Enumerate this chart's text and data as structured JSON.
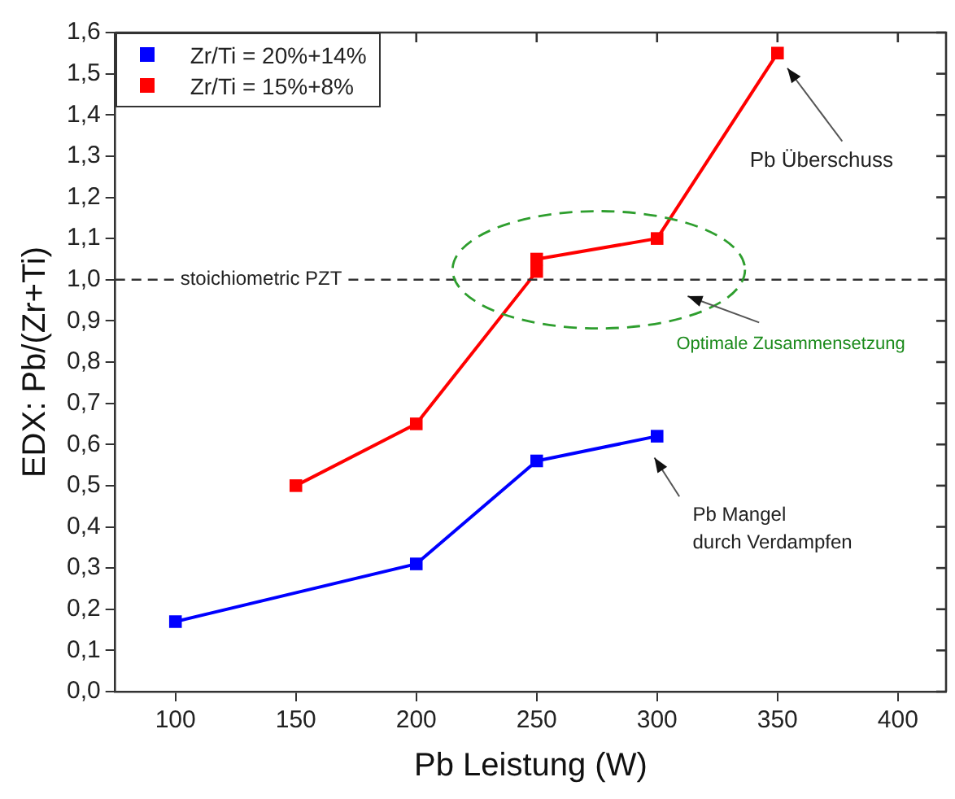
{
  "chart_data": {
    "type": "line",
    "xlabel": "Pb Leistung (W)",
    "ylabel": "EDX: Pb/(Zr+Ti)",
    "xlim": [
      75,
      420
    ],
    "xticks": [
      100,
      150,
      200,
      250,
      300,
      350,
      400
    ],
    "ylim": [
      0,
      1.6
    ],
    "yticks": [
      {
        "value": 0,
        "label": "0,0"
      },
      {
        "value": 0.1,
        "label": "0,1"
      },
      {
        "value": 0.2,
        "label": "0,2"
      },
      {
        "value": 0.3,
        "label": "0,3"
      },
      {
        "value": 0.4,
        "label": "0,4"
      },
      {
        "value": 0.5,
        "label": "0,5"
      },
      {
        "value": 0.6,
        "label": "0,6"
      },
      {
        "value": 0.7,
        "label": "0,7"
      },
      {
        "value": 0.8,
        "label": "0,8"
      },
      {
        "value": 0.9,
        "label": "0,9"
      },
      {
        "value": 1.0,
        "label": "1,0"
      },
      {
        "value": 1.1,
        "label": "1,1"
      },
      {
        "value": 1.2,
        "label": "1,2"
      },
      {
        "value": 1.3,
        "label": "1,3"
      },
      {
        "value": 1.4,
        "label": "1,4"
      },
      {
        "value": 1.5,
        "label": "1,5"
      },
      {
        "value": 1.6,
        "label": "1,6"
      }
    ],
    "series": [
      {
        "name": "Zr/Ti = 20%+14%",
        "color": "#0000ff",
        "x": [
          100,
          200,
          250,
          300
        ],
        "values": [
          0.17,
          0.31,
          0.56,
          0.62
        ]
      },
      {
        "name": "Zr/Ti = 15%+8%",
        "color": "#ff0000",
        "x": [
          150,
          200,
          250,
          250,
          300,
          350
        ],
        "values": [
          0.5,
          0.65,
          1.02,
          1.05,
          1.1,
          1.55
        ]
      }
    ],
    "ref_lines": [
      {
        "axis": "y",
        "value": 1.0,
        "label": "stoichiometric PZT",
        "color": "#333333",
        "line_style": "dashed"
      }
    ],
    "annotations": [
      "Pb Überschuss",
      "Optimale Zusammensetzung",
      "Pb Mangel\ndurch Verdampfen"
    ],
    "marker": "square",
    "line_style": "solid",
    "legend": "top left",
    "grid": false
  }
}
